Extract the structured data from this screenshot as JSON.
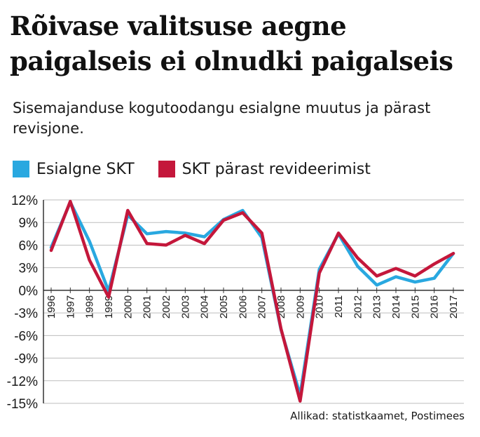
{
  "title": "Rõivase valitsuse aegne paigalseis ei olnudki paigalseis",
  "subtitle": "Sisemajanduse kogutoodangu esialgne muutus ja pärast revisjone.",
  "source": "Allikad: statistkaamet, Postimees",
  "colors": {
    "esialgne": "#29a8e0",
    "revideeritud": "#c4173b",
    "grid": "#bdbdbd",
    "axis": "#333333"
  },
  "chart_data": {
    "type": "line",
    "x": [
      "1996",
      "1997",
      "1998",
      "1999",
      "2000",
      "2001",
      "2002",
      "2003",
      "2004",
      "2005",
      "2006",
      "2007",
      "2008",
      "2009",
      "2010",
      "2011",
      "2012",
      "2013",
      "2014",
      "2015",
      "2016",
      "2017"
    ],
    "yticks": [
      "12%",
      "9%",
      "6%",
      "3%",
      "0%",
      "-3%",
      "-6%",
      "-9%",
      "-12%",
      "-15%"
    ],
    "ylim": [
      -15,
      12
    ],
    "grid": true,
    "legend_position": "top-left",
    "series": [
      {
        "name": "Esialgne SKT",
        "color_key": "esialgne",
        "values": [
          5.7,
          11.7,
          6.5,
          -0.1,
          10.0,
          7.5,
          7.8,
          7.6,
          7.1,
          9.4,
          10.6,
          7.0,
          -5.2,
          -13.9,
          2.8,
          7.5,
          3.2,
          0.7,
          1.8,
          1.1,
          1.6,
          4.9
        ]
      },
      {
        "name": "SKT pärast revideerimist",
        "color_key": "revideeritud",
        "values": [
          5.3,
          11.8,
          4.0,
          -0.9,
          10.6,
          6.2,
          6.0,
          7.3,
          6.2,
          9.3,
          10.3,
          7.6,
          -5.1,
          -14.7,
          2.3,
          7.6,
          4.3,
          1.9,
          2.9,
          1.9,
          3.5,
          4.9
        ]
      }
    ]
  }
}
